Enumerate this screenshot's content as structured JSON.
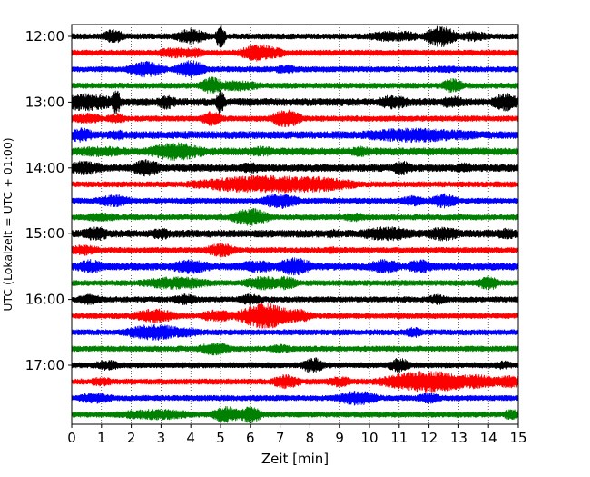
{
  "chart_data": {
    "type": "line",
    "chart_kind": "helicorder seismogram (stacked traces, 15 min per line)",
    "xlabel": "Zeit  [min]",
    "ylabel": "UTC (Lokalzeit = UTC + 01:00)",
    "xlim": [
      0,
      15
    ],
    "x_ticks": [
      "0",
      "1",
      "2",
      "3",
      "4",
      "5",
      "6",
      "7",
      "8",
      "9",
      "10",
      "11",
      "12",
      "13",
      "14",
      "15"
    ],
    "y_tick_labels": [
      "12:00",
      "13:00",
      "14:00",
      "15:00",
      "16:00",
      "17:00"
    ],
    "grid": "vertical dotted lines at each minute",
    "trace_colors": [
      "#000000",
      "#ff0000",
      "#0000ff",
      "#008000"
    ],
    "rows": [
      {
        "start": "12:00",
        "color": "#000000",
        "base": 3,
        "events": [
          [
            1.4,
            8,
            0.3
          ],
          [
            4.0,
            9,
            0.4
          ],
          [
            4.3,
            6,
            0.3
          ],
          [
            5.0,
            14,
            0.12
          ],
          [
            10.6,
            6,
            0.6
          ],
          [
            11.2,
            6,
            0.4
          ],
          [
            12.4,
            12,
            0.4
          ],
          [
            13.5,
            6,
            0.4
          ]
        ]
      },
      {
        "start": "12:15",
        "color": "#ff0000",
        "base": 3,
        "events": [
          [
            3.5,
            6,
            0.6
          ],
          [
            4.0,
            6,
            0.4
          ],
          [
            6.3,
            10,
            0.5
          ],
          [
            6.8,
            6,
            0.4
          ]
        ]
      },
      {
        "start": "12:30",
        "color": "#0000ff",
        "base": 3,
        "events": [
          [
            2.5,
            9,
            0.5
          ],
          [
            4.0,
            10,
            0.4
          ],
          [
            7.2,
            5,
            0.4
          ],
          [
            12.6,
            4,
            0.5
          ]
        ]
      },
      {
        "start": "12:45",
        "color": "#008000",
        "base": 3,
        "events": [
          [
            4.7,
            10,
            0.3
          ],
          [
            5.5,
            6,
            0.8
          ],
          [
            12.8,
            8,
            0.3
          ]
        ]
      },
      {
        "start": "13:00",
        "color": "#000000",
        "base": 4,
        "events": [
          [
            0.5,
            10,
            0.8
          ],
          [
            1.5,
            14,
            0.12
          ],
          [
            3.2,
            8,
            0.3
          ],
          [
            5.0,
            14,
            0.12
          ],
          [
            10.8,
            8,
            0.5
          ],
          [
            12.8,
            7,
            0.4
          ],
          [
            14.6,
            10,
            0.4
          ]
        ]
      },
      {
        "start": "13:15",
        "color": "#ff0000",
        "base": 3,
        "events": [
          [
            0.5,
            6,
            0.5
          ],
          [
            1.5,
            6,
            0.3
          ],
          [
            4.7,
            8,
            0.3
          ],
          [
            7.2,
            10,
            0.4
          ]
        ]
      },
      {
        "start": "13:30",
        "color": "#0000ff",
        "base": 4,
        "events": [
          [
            0.3,
            8,
            0.4
          ],
          [
            1.5,
            6,
            0.3
          ],
          [
            11.5,
            8,
            1.6
          ],
          [
            12.8,
            6,
            1.0
          ]
        ]
      },
      {
        "start": "13:45",
        "color": "#008000",
        "base": 4,
        "events": [
          [
            1.0,
            6,
            1.0
          ],
          [
            3.5,
            10,
            0.8
          ],
          [
            6.4,
            6,
            0.4
          ],
          [
            9.7,
            6,
            0.4
          ]
        ]
      },
      {
        "start": "14:00",
        "color": "#000000",
        "base": 4,
        "events": [
          [
            0.4,
            8,
            0.6
          ],
          [
            2.5,
            10,
            0.4
          ],
          [
            6.0,
            6,
            0.4
          ],
          [
            11.1,
            8,
            0.3
          ],
          [
            13.2,
            6,
            0.3
          ]
        ]
      },
      {
        "start": "14:15",
        "color": "#ff0000",
        "base": 3,
        "events": [
          [
            6.5,
            10,
            1.8
          ],
          [
            8.0,
            9,
            1.2
          ],
          [
            9.0,
            6,
            0.6
          ]
        ]
      },
      {
        "start": "14:30",
        "color": "#0000ff",
        "base": 3,
        "events": [
          [
            1.4,
            7,
            0.5
          ],
          [
            7.0,
            9,
            0.5
          ],
          [
            11.5,
            6,
            0.4
          ],
          [
            12.5,
            8,
            0.4
          ]
        ]
      },
      {
        "start": "14:45",
        "color": "#008000",
        "base": 3,
        "events": [
          [
            1.0,
            5,
            0.6
          ],
          [
            6.0,
            10,
            0.5
          ],
          [
            9.5,
            5,
            0.4
          ]
        ]
      },
      {
        "start": "15:00",
        "color": "#000000",
        "base": 4,
        "events": [
          [
            0.8,
            8,
            0.4
          ],
          [
            3.0,
            7,
            0.3
          ],
          [
            8.8,
            5,
            0.4
          ],
          [
            10.6,
            8,
            0.8
          ],
          [
            12.5,
            8,
            0.5
          ],
          [
            14.6,
            6,
            0.4
          ]
        ]
      },
      {
        "start": "15:15",
        "color": "#ff0000",
        "base": 3,
        "events": [
          [
            0.4,
            6,
            0.5
          ],
          [
            5.0,
            8,
            0.4
          ],
          [
            8.7,
            4,
            0.4
          ]
        ]
      },
      {
        "start": "15:30",
        "color": "#0000ff",
        "base": 4,
        "events": [
          [
            0.6,
            8,
            0.4
          ],
          [
            4.0,
            8,
            0.6
          ],
          [
            6.2,
            7,
            0.6
          ],
          [
            7.5,
            10,
            0.5
          ],
          [
            10.5,
            8,
            0.5
          ],
          [
            11.7,
            8,
            0.4
          ]
        ]
      },
      {
        "start": "15:45",
        "color": "#008000",
        "base": 3,
        "events": [
          [
            3.5,
            7,
            1.0
          ],
          [
            6.5,
            8,
            0.6
          ],
          [
            7.2,
            8,
            0.3
          ],
          [
            14.0,
            8,
            0.3
          ]
        ]
      },
      {
        "start": "16:00",
        "color": "#000000",
        "base": 3,
        "events": [
          [
            0.6,
            6,
            0.4
          ],
          [
            3.8,
            6,
            0.4
          ],
          [
            6.0,
            6,
            0.4
          ],
          [
            12.3,
            6,
            0.3
          ]
        ]
      },
      {
        "start": "16:15",
        "color": "#ff0000",
        "base": 3,
        "events": [
          [
            2.8,
            8,
            0.6
          ],
          [
            4.9,
            7,
            0.5
          ],
          [
            6.5,
            14,
            0.7
          ],
          [
            7.5,
            8,
            0.5
          ]
        ]
      },
      {
        "start": "16:30",
        "color": "#0000ff",
        "base": 3,
        "events": [
          [
            2.8,
            9,
            0.8
          ],
          [
            3.8,
            6,
            0.5
          ],
          [
            11.5,
            6,
            0.3
          ]
        ]
      },
      {
        "start": "16:45",
        "color": "#008000",
        "base": 3,
        "events": [
          [
            4.8,
            7,
            0.5
          ],
          [
            7.0,
            5,
            0.4
          ]
        ]
      },
      {
        "start": "17:00",
        "color": "#000000",
        "base": 3,
        "events": [
          [
            1.2,
            6,
            0.4
          ],
          [
            8.1,
            9,
            0.3
          ],
          [
            11.0,
            8,
            0.3
          ],
          [
            14.5,
            5,
            0.3
          ]
        ]
      },
      {
        "start": "17:15",
        "color": "#ff0000",
        "base": 3,
        "events": [
          [
            1.0,
            5,
            0.4
          ],
          [
            7.2,
            8,
            0.4
          ],
          [
            9.0,
            6,
            0.4
          ],
          [
            12.0,
            12,
            1.2
          ],
          [
            13.5,
            8,
            0.8
          ],
          [
            14.7,
            7,
            0.5
          ]
        ]
      },
      {
        "start": "17:30",
        "color": "#0000ff",
        "base": 3,
        "events": [
          [
            0.8,
            6,
            0.6
          ],
          [
            9.6,
            8,
            0.6
          ],
          [
            12.0,
            6,
            0.4
          ]
        ]
      },
      {
        "start": "17:45",
        "color": "#008000",
        "base": 3,
        "events": [
          [
            2.8,
            6,
            1.2
          ],
          [
            5.2,
            9,
            0.4
          ],
          [
            6.0,
            10,
            0.3
          ],
          [
            14.8,
            6,
            0.3
          ]
        ]
      }
    ]
  }
}
